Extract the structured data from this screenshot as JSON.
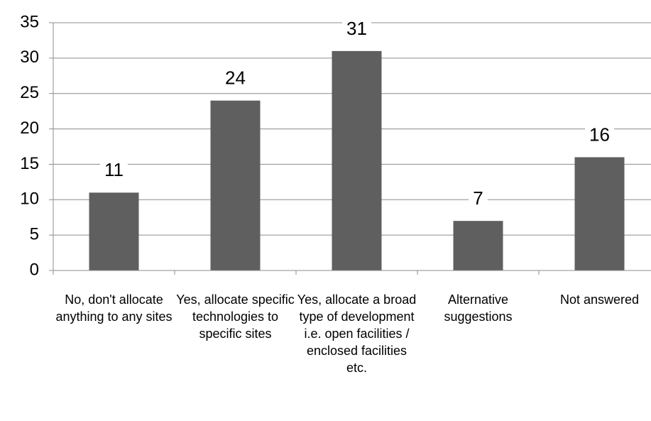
{
  "chart_data": {
    "type": "bar",
    "categories": [
      "No, don't allocate anything to any sites",
      "Yes, allocate specific technologies to specific sites",
      "Yes, allocate a broad type of development i.e. open facilities / enclosed facilities etc.",
      "Alternative suggestions",
      "Not answered"
    ],
    "values": [
      11,
      24,
      31,
      7,
      16
    ],
    "color": "#5f5f5f",
    "ylim": [
      0,
      35
    ],
    "yticks": [
      0,
      5,
      10,
      15,
      20,
      25,
      30,
      35
    ],
    "grid": true
  }
}
